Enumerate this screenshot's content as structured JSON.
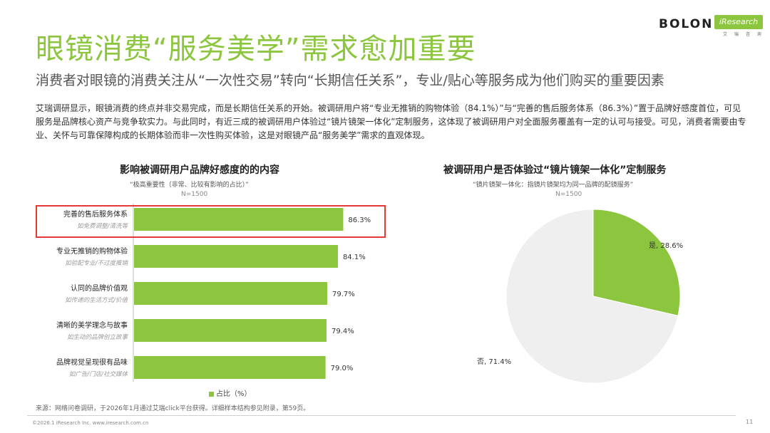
{
  "brand": {
    "bolon": "BOLON",
    "iresearch": "iResearch",
    "iresearch_sub": "艾 瑞 咨 询"
  },
  "header": {
    "title": "眼镜消费“服务美学”需求愈加重要",
    "subtitle": "消费者对眼镜的消费关注从“一次性交易”转向“长期信任关系”，专业/贴心等服务成为他们购买的重要因素"
  },
  "intro": "艾瑞调研显示，眼镜消费的终点并非交易完成，而是长期信任关系的开始。被调研用户将“专业无推销的购物体验（84.1%）”与“完善的售后服务体系（86.3%）”置于品牌好感度首位，可见服务是品牌核心资产与竞争软实力。与此同时，有近三成的被调研用户体验过“镜片镜架一体化”定制服务，这体现了被调研用户对全面服务覆盖有一定的认可与接受。可见，消费者需要由专业、关怀与可靠保障构成的长期体验而非一次性购买体验，这是对眼镜产品“服务美学”需求的直观体现。",
  "colors": {
    "accent": "#8cc63f",
    "highlight": "#e53935",
    "pie_rest": "#efefef"
  },
  "bar_chart_header": {
    "title": "影响被调研用户品牌好感度的的内容",
    "note": "“极高重要性（非常、比较有影响的占比）”",
    "n": "N=1500",
    "legend": "占比（%）"
  },
  "pie_chart_header": {
    "title": "被调研用户是否体验过“镜片镜架一体化”定制服务",
    "note": "“镜片镜架一体化：指镜片镜架均为同一品牌的配镜服务”",
    "n": "N=1500"
  },
  "chart_data": [
    {
      "type": "bar",
      "orientation": "horizontal",
      "title": "影响被调研用户品牌好感度的的内容",
      "categories": [
        "完善的售后服务体系",
        "专业无推销的购物体验",
        "认同的品牌价值观",
        "清晰的美学理念与故事",
        "品牌视觉呈现很有品味"
      ],
      "category_notes": [
        "如免费调整/清洗等",
        "如验配专业/不过度推销",
        "如传递的生活方式/价值",
        "如生动的品牌创立故事",
        "如广告/门店/社交媒体"
      ],
      "values": [
        86.3,
        84.1,
        79.7,
        79.4,
        79.0
      ],
      "value_labels": [
        "86.3%",
        "84.1%",
        "79.7%",
        "79.4%",
        "79.0%"
      ],
      "series": [
        {
          "name": "占比（%）",
          "values": [
            86.3,
            84.1,
            79.7,
            79.4,
            79.0
          ]
        }
      ],
      "xlim": [
        0,
        100
      ],
      "highlighted_category": "完善的售后服务体系"
    },
    {
      "type": "pie",
      "title": "被调研用户是否体验过“镜片镜架一体化”定制服务",
      "labels": [
        "是",
        "否"
      ],
      "values": [
        28.6,
        71.4
      ],
      "slice_labels": [
        "是, 28.6%",
        "否, 71.4%"
      ]
    }
  ],
  "footer": {
    "source": "来源：网络问卷调研，于2026年1月通过艾瑞click平台获得。详细样本结构参见附录，第59页。",
    "copyright": "©2026.1 iResearch Inc.                www.iresearch.com.cn",
    "page": "11"
  }
}
